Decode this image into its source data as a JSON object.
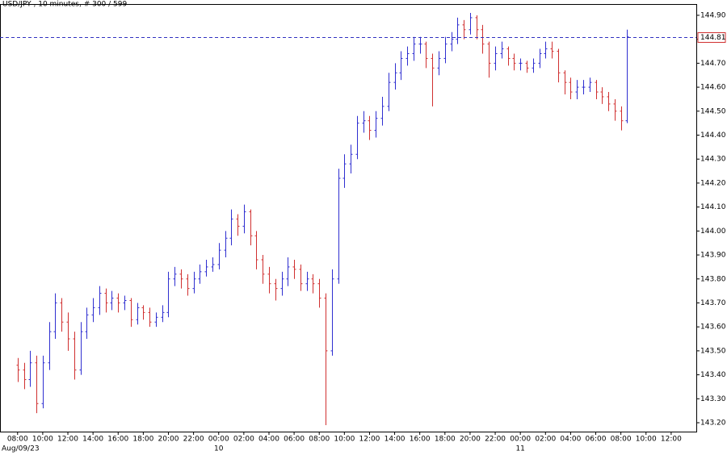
{
  "chart_data": {
    "type": "ohlc",
    "title": "USD/JPY , 10 minutes, # 300 / 599",
    "open": [
      143.44,
      143.42,
      143.38,
      143.45,
      143.28,
      143.45,
      143.58,
      143.7,
      143.62,
      143.55,
      143.42,
      143.58,
      143.65,
      143.68,
      143.74,
      143.7,
      143.72,
      143.7,
      143.71,
      143.63,
      143.68,
      143.66,
      143.62,
      143.64,
      143.66,
      143.8,
      143.82,
      143.8,
      143.76,
      143.8,
      143.83,
      143.85,
      143.86,
      143.92,
      143.97,
      144.05,
      144.02,
      144.08,
      143.98,
      143.88,
      143.82,
      143.78,
      143.76,
      143.8,
      143.85,
      143.84,
      143.78,
      143.8,
      143.78,
      143.72,
      143.5,
      143.8,
      144.22,
      144.28,
      144.32,
      144.45,
      144.46,
      144.42,
      144.47,
      144.52,
      144.62,
      144.66,
      144.72,
      144.74,
      144.78,
      144.78,
      144.72,
      144.68,
      144.72,
      144.78,
      144.8,
      144.86,
      144.84,
      144.89,
      144.84,
      144.78,
      144.7,
      144.74,
      144.76,
      144.72,
      144.7,
      144.7,
      144.68,
      144.7,
      144.74,
      144.76,
      144.75,
      144.66,
      144.62,
      144.58,
      144.6,
      144.6,
      144.62,
      144.58,
      144.56,
      144.53,
      144.5,
      144.46
    ],
    "high": [
      143.47,
      143.45,
      143.5,
      143.48,
      143.48,
      143.62,
      143.74,
      143.72,
      143.66,
      143.58,
      143.62,
      143.68,
      143.72,
      143.77,
      143.76,
      143.75,
      143.74,
      143.73,
      143.72,
      143.7,
      143.69,
      143.68,
      143.66,
      143.69,
      143.83,
      143.85,
      143.84,
      143.82,
      143.83,
      143.86,
      143.88,
      143.89,
      143.95,
      144.0,
      144.09,
      144.07,
      144.11,
      144.09,
      144.0,
      143.9,
      143.85,
      143.8,
      143.83,
      143.89,
      143.88,
      143.86,
      143.83,
      143.82,
      143.8,
      143.74,
      143.84,
      144.26,
      144.32,
      144.36,
      144.48,
      144.5,
      144.48,
      144.5,
      144.56,
      144.66,
      144.7,
      144.75,
      144.77,
      144.81,
      144.81,
      144.79,
      144.74,
      144.75,
      144.81,
      144.83,
      144.89,
      144.88,
      144.91,
      144.9,
      144.86,
      144.79,
      144.77,
      144.79,
      144.77,
      144.74,
      144.72,
      144.71,
      144.72,
      144.76,
      144.79,
      144.79,
      144.76,
      144.67,
      144.64,
      144.63,
      144.63,
      144.64,
      144.63,
      144.6,
      144.58,
      144.55,
      144.52,
      144.84
    ],
    "low": [
      143.37,
      143.34,
      143.35,
      143.24,
      143.26,
      143.42,
      143.55,
      143.58,
      143.5,
      143.38,
      143.4,
      143.55,
      143.62,
      143.65,
      143.66,
      143.67,
      143.66,
      143.67,
      143.6,
      143.61,
      143.63,
      143.6,
      143.6,
      143.62,
      143.64,
      143.77,
      143.76,
      143.73,
      143.74,
      143.78,
      143.81,
      143.83,
      143.84,
      143.89,
      143.94,
      143.98,
      143.99,
      143.94,
      143.84,
      143.78,
      143.74,
      143.71,
      143.73,
      143.77,
      143.8,
      143.75,
      143.75,
      143.74,
      143.68,
      143.19,
      143.48,
      143.78,
      144.18,
      144.24,
      144.3,
      144.41,
      144.38,
      144.39,
      144.44,
      144.5,
      144.59,
      144.63,
      144.69,
      144.71,
      144.74,
      144.68,
      144.52,
      144.65,
      144.7,
      144.75,
      144.78,
      144.8,
      144.82,
      144.8,
      144.74,
      144.64,
      144.67,
      144.72,
      144.69,
      144.67,
      144.67,
      144.66,
      144.66,
      144.68,
      144.72,
      144.72,
      144.62,
      144.57,
      144.55,
      144.55,
      144.57,
      144.58,
      144.55,
      144.53,
      144.5,
      144.46,
      144.42,
      144.45
    ],
    "close": [
      143.42,
      143.38,
      143.45,
      143.28,
      143.45,
      143.58,
      143.7,
      143.62,
      143.55,
      143.42,
      143.58,
      143.65,
      143.68,
      143.74,
      143.7,
      143.72,
      143.7,
      143.71,
      143.63,
      143.68,
      143.66,
      143.62,
      143.64,
      143.66,
      143.8,
      143.82,
      143.8,
      143.76,
      143.8,
      143.83,
      143.85,
      143.86,
      143.92,
      143.97,
      144.05,
      144.02,
      144.08,
      143.98,
      143.88,
      143.82,
      143.78,
      143.76,
      143.8,
      143.85,
      143.84,
      143.78,
      143.8,
      143.78,
      143.72,
      143.5,
      143.8,
      144.22,
      144.28,
      144.32,
      144.45,
      144.46,
      144.42,
      144.47,
      144.52,
      144.62,
      144.66,
      144.72,
      144.74,
      144.78,
      144.78,
      144.72,
      144.68,
      144.72,
      144.78,
      144.8,
      144.86,
      144.84,
      144.89,
      144.84,
      144.78,
      144.7,
      144.74,
      144.76,
      144.72,
      144.7,
      144.7,
      144.68,
      144.7,
      144.74,
      144.76,
      144.75,
      144.66,
      144.62,
      144.58,
      144.6,
      144.6,
      144.62,
      144.58,
      144.56,
      144.53,
      144.5,
      144.46,
      144.81
    ],
    "up_color": "#2f2fd0",
    "down_color": "#d03030",
    "last_price": 144.81,
    "last_price_color": "#3030c0",
    "ylim": [
      143.163,
      144.947
    ],
    "yticks": [
      {
        "value": 143.2,
        "label": "143.20"
      },
      {
        "value": 143.3,
        "label": "143.30"
      },
      {
        "value": 143.4,
        "label": "143.40"
      },
      {
        "value": 143.5,
        "label": "143.50"
      },
      {
        "value": 143.6,
        "label": "143.60"
      },
      {
        "value": 143.7,
        "label": "143.70"
      },
      {
        "value": 143.8,
        "label": "143.80"
      },
      {
        "value": 143.9,
        "label": "143.90"
      },
      {
        "value": 144.0,
        "label": "144.00"
      },
      {
        "value": 144.1,
        "label": "144.10"
      },
      {
        "value": 144.2,
        "label": "144.20"
      },
      {
        "value": 144.3,
        "label": "144.30"
      },
      {
        "value": 144.4,
        "label": "144.40"
      },
      {
        "value": 144.5,
        "label": "144.50"
      },
      {
        "value": 144.6,
        "label": "144.60"
      },
      {
        "value": 144.7,
        "label": "144.70"
      },
      {
        "value": 144.8,
        "label": "144.80"
      },
      {
        "value": 144.9,
        "label": "144.90"
      }
    ],
    "xlim": [
      -2.8,
      108
    ],
    "xticks": [
      {
        "value": 0,
        "label": "08:00"
      },
      {
        "value": 4,
        "label": "10:00"
      },
      {
        "value": 8,
        "label": "12:00"
      },
      {
        "value": 12,
        "label": "14:00"
      },
      {
        "value": 16,
        "label": "16:00"
      },
      {
        "value": 20,
        "label": "18:00"
      },
      {
        "value": 24,
        "label": "20:00"
      },
      {
        "value": 28,
        "label": "22:00"
      },
      {
        "value": 32,
        "label": "00:00"
      },
      {
        "value": 36,
        "label": "02:00"
      },
      {
        "value": 40,
        "label": "04:00"
      },
      {
        "value": 44,
        "label": "06:00"
      },
      {
        "value": 48,
        "label": "08:00"
      },
      {
        "value": 52,
        "label": "10:00"
      },
      {
        "value": 56,
        "label": "12:00"
      },
      {
        "value": 60,
        "label": "14:00"
      },
      {
        "value": 64,
        "label": "16:00"
      },
      {
        "value": 68,
        "label": "18:00"
      },
      {
        "value": 72,
        "label": "20:00"
      },
      {
        "value": 76,
        "label": "22:00"
      },
      {
        "value": 80,
        "label": "00:00"
      },
      {
        "value": 84,
        "label": "02:00"
      },
      {
        "value": 88,
        "label": "04:00"
      },
      {
        "value": 92,
        "label": "06:00"
      },
      {
        "value": 96,
        "label": "08:00"
      },
      {
        "value": 100,
        "label": "10:00"
      },
      {
        "value": 104,
        "label": "12:00"
      }
    ],
    "date_labels": [
      {
        "value": -2.8,
        "label": "Aug/09/23"
      },
      {
        "value": 32,
        "label": "10"
      },
      {
        "value": 80,
        "label": "11"
      }
    ]
  }
}
